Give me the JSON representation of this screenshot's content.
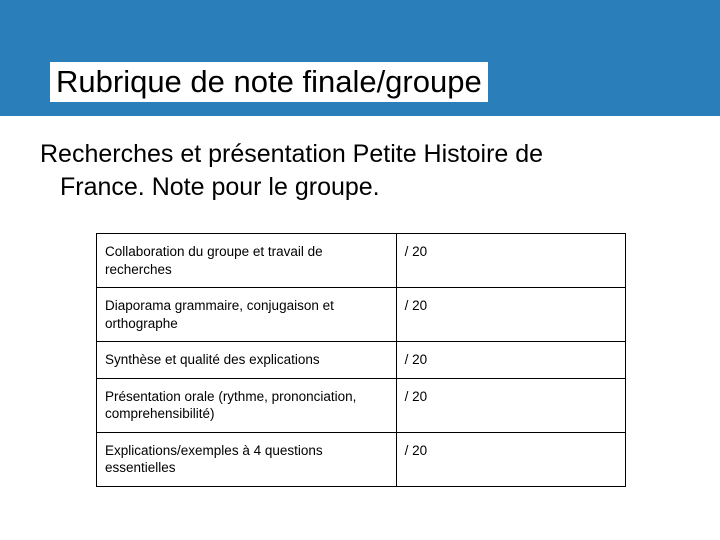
{
  "header": {
    "title": "Rubrique de note finale/groupe",
    "band_color": "#2a7fba",
    "title_bg": "#ffffff",
    "title_color": "#000000",
    "title_fontsize": 31
  },
  "subtitle": {
    "line1": "Recherches et présentation Petite Histoire de",
    "line2": "France. Note pour le groupe.",
    "fontsize": 25,
    "color": "#000000"
  },
  "rubric": {
    "border_color": "#000000",
    "cell_fontsize": 13.5,
    "criterion_col_width": 300,
    "score_col_width": 230,
    "rows": [
      {
        "criterion": "Collaboration du groupe et travail de recherches",
        "score": "/ 20"
      },
      {
        "criterion": "Diaporama grammaire, conjugaison et orthographe",
        "score": "/ 20"
      },
      {
        "criterion": "Synthèse et qualité des explications",
        "score": "/ 20"
      },
      {
        "criterion": "Présentation orale (rythme, prononciation, comprehensibilité)",
        "score": "/ 20"
      },
      {
        "criterion": "Explications/exemples à 4 questions essentielles",
        "score": "/ 20"
      }
    ]
  }
}
